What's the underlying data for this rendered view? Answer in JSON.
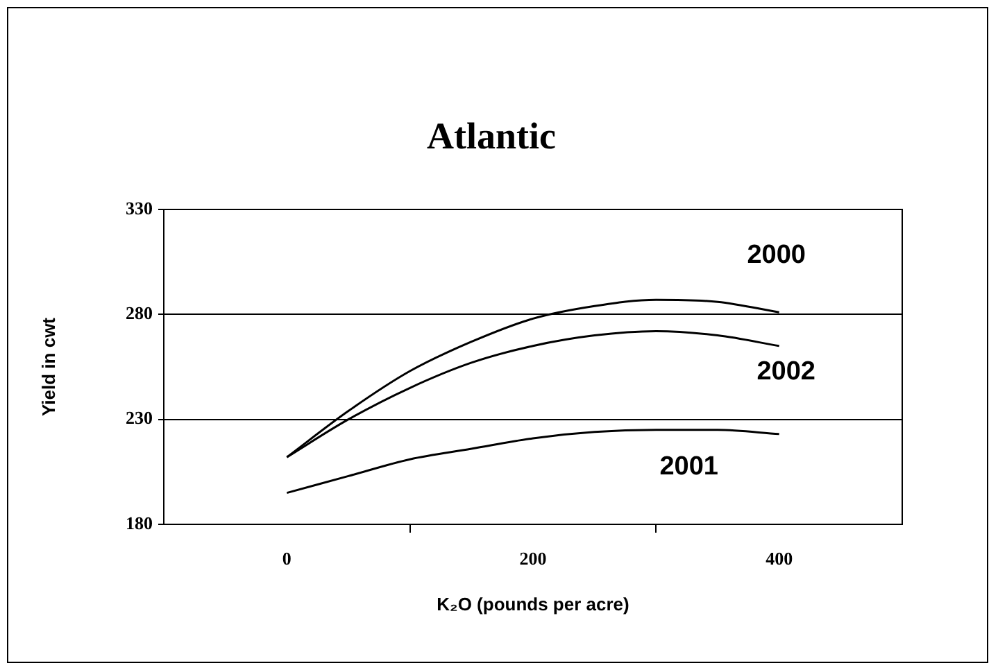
{
  "chart_data": {
    "type": "line",
    "title": "Atlantic",
    "xlabel": "K₂O (pounds per acre)",
    "ylabel": "Yield in cwt",
    "x": [
      0,
      50,
      100,
      150,
      200,
      250,
      300,
      350,
      400
    ],
    "series": [
      {
        "name": "2000",
        "color": "#000000",
        "values": [
          212,
          234,
          253,
          267,
          278,
          284,
          287,
          286,
          281
        ]
      },
      {
        "name": "2002",
        "color": "#000000",
        "values": [
          212,
          230,
          245,
          257,
          265,
          270,
          272,
          270,
          265
        ]
      },
      {
        "name": "2001",
        "color": "#000000",
        "values": [
          195,
          203,
          211,
          216,
          221,
          224,
          225,
          225,
          223
        ]
      }
    ],
    "xlim": [
      -100,
      500
    ],
    "xticks": [
      0,
      {
        "value": 100,
        "label": null
      },
      200,
      {
        "value": 300,
        "label": null
      },
      400
    ],
    "ylim": [
      180,
      330
    ],
    "yticks": [
      180,
      230,
      280,
      330
    ],
    "grid": "y",
    "legend": false,
    "marker": "none",
    "line_style": "solid"
  }
}
